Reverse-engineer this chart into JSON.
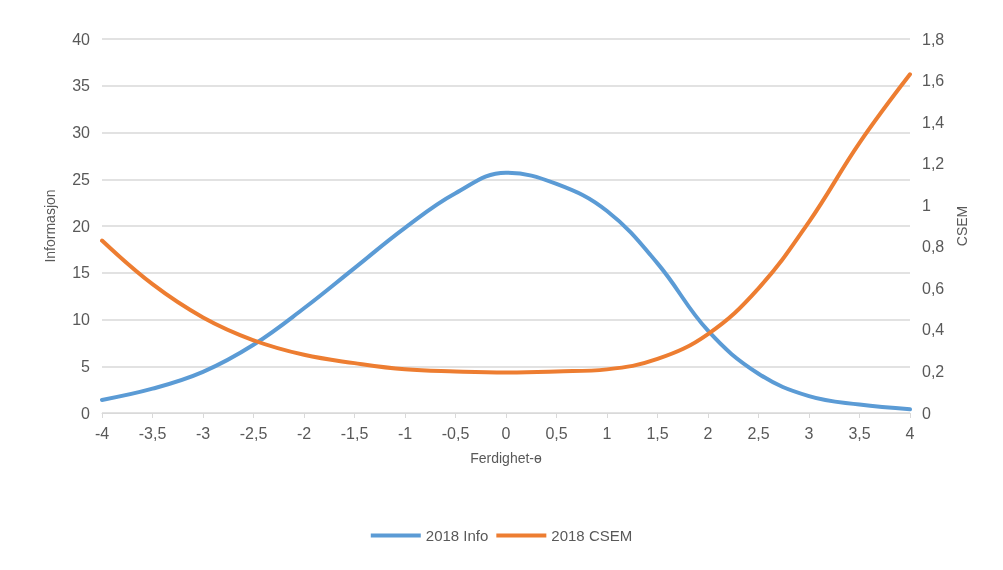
{
  "chart_data": {
    "type": "line",
    "xlabel": "Ferdighet-ɵ",
    "ylabel": "Informasjon",
    "y2label": "CSEM",
    "x": [
      -4,
      -3.5,
      -3,
      -2.5,
      -2,
      -1.5,
      -1,
      -0.5,
      0,
      0.5,
      1,
      1.5,
      2,
      2.5,
      3,
      3.5,
      4
    ],
    "series": [
      {
        "name": "2018 Info",
        "color": "#5b9bd5",
        "values": [
          1.4,
          2.6,
          4.4,
          7.3,
          11.2,
          15.5,
          19.8,
          23.5,
          25.7,
          24.5,
          21.6,
          16,
          8.8,
          4.2,
          1.8,
          0.9,
          0.4
        ]
      },
      {
        "name": "2018 CSEM",
        "color": "#ed7d31",
        "axis": "y2",
        "values": [
          0.83,
          0.62,
          0.46,
          0.35,
          0.28,
          0.24,
          0.21,
          0.2,
          0.195,
          0.2,
          0.21,
          0.26,
          0.38,
          0.6,
          0.92,
          1.3,
          1.63
        ]
      }
    ],
    "xlim": [
      -4,
      4
    ],
    "xticks": [
      -4,
      {
        "value": -3.5,
        "label": "-3,5"
      },
      -3,
      {
        "value": -2.5,
        "label": "-2,5"
      },
      -2,
      {
        "value": -1.5,
        "label": "-1,5"
      },
      -1,
      {
        "value": -0.5,
        "label": "-0,5"
      },
      0,
      {
        "value": 0.5,
        "label": "0,5"
      },
      1,
      {
        "value": 1.5,
        "label": "1,5"
      },
      2,
      {
        "value": 2.5,
        "label": "2,5"
      },
      3,
      {
        "value": 3.5,
        "label": "3,5"
      },
      4
    ],
    "ylim": [
      0,
      40
    ],
    "yticks": [
      0,
      5,
      10,
      15,
      20,
      25,
      30,
      35,
      40
    ],
    "y2lim": [
      0,
      1.8
    ],
    "y2ticks": [
      0,
      {
        "value": 0.2,
        "label": "0,2"
      },
      {
        "value": 0.4,
        "label": "0,4"
      },
      {
        "value": 0.6,
        "label": "0,6"
      },
      {
        "value": 0.8,
        "label": "0,8"
      },
      1,
      {
        "value": 1.2,
        "label": "1,2"
      },
      {
        "value": 1.4,
        "label": "1,4"
      },
      {
        "value": 1.6,
        "label": "1,6"
      },
      {
        "value": 1.8,
        "label": "1,8"
      }
    ],
    "grid": "y",
    "legend": "bottom",
    "marker": "none",
    "line_style": "solid"
  }
}
